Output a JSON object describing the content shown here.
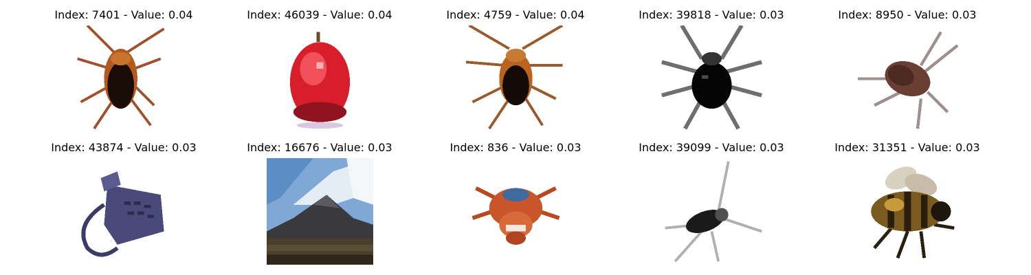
{
  "panels": [
    {
      "index": "7401",
      "value": "0.04",
      "image": "cockroach-image"
    },
    {
      "index": "46039",
      "value": "0.04",
      "image": "red-apple-image"
    },
    {
      "index": "4759",
      "value": "0.04",
      "image": "cockroach-image"
    },
    {
      "index": "39818",
      "value": "0.03",
      "image": "black-beetle-image"
    },
    {
      "index": "8950",
      "value": "0.03",
      "image": "cockroach-image"
    },
    {
      "index": "43874",
      "value": "0.03",
      "image": "telephone-image"
    },
    {
      "index": "16676",
      "value": "0.03",
      "image": "mountain-sky-image"
    },
    {
      "index": "836",
      "value": "0.03",
      "image": "crab-image"
    },
    {
      "index": "39099",
      "value": "0.03",
      "image": "cockroach-image"
    },
    {
      "index": "31351",
      "value": "0.03",
      "image": "bee-image"
    }
  ]
}
